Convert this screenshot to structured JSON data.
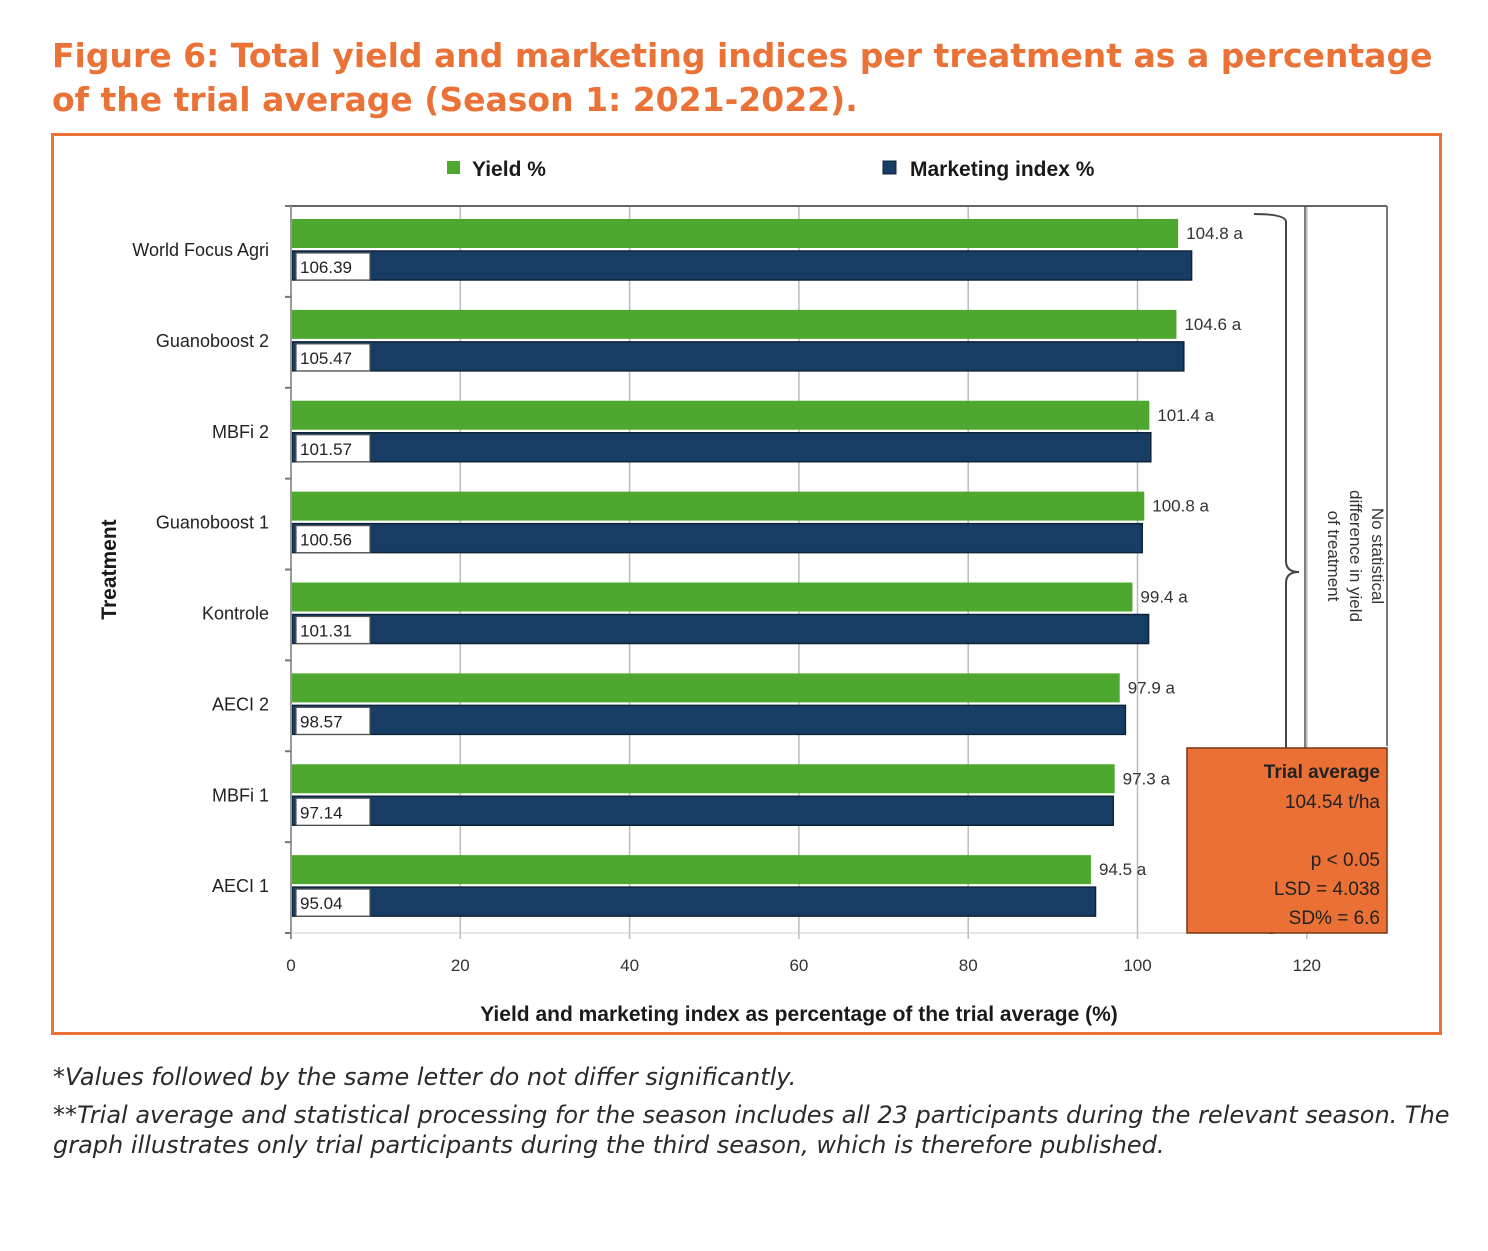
{
  "figure": {
    "title": "Figure 6: Total yield and marketing indices per treatment as a percentage of the trial average (Season 1: 2021-2022).",
    "title_color": "#ea7237",
    "frame_color": "#ea7237"
  },
  "chart_data": {
    "type": "bar",
    "orientation": "horizontal",
    "title": "",
    "xlabel": "Yield and marketing index as percentage of the trial average (%)",
    "ylabel": "Treatment",
    "xlim": [
      0,
      120
    ],
    "xticks": [
      0,
      20,
      40,
      60,
      80,
      100,
      120
    ],
    "grid": true,
    "legend_position": "top",
    "categories": [
      "World Focus Agri",
      "Guanoboost 2",
      "MBFi 2",
      "Guanoboost 1",
      "Kontrole",
      "AECI 2",
      "MBFi 1",
      "AECI 1"
    ],
    "series": [
      {
        "name": "Yield %",
        "color": "#4ea72e",
        "values": [
          104.8,
          104.6,
          101.4,
          100.8,
          99.4,
          97.9,
          97.3,
          94.5
        ],
        "labels": [
          "104.8 a",
          "104.6 a",
          "101.4 a",
          "100.8 a",
          "99.4 a",
          "97.9 a",
          "97.3 a",
          "94.5 a"
        ]
      },
      {
        "name": "Marketing index %",
        "color": "#173d64",
        "values": [
          106.39,
          105.47,
          101.57,
          100.56,
          101.31,
          98.57,
          97.14,
          95.04
        ],
        "labels": [
          "106.39",
          "105.47",
          "101.57",
          "100.56",
          "101.31",
          "98.57",
          "97.14",
          "95.04"
        ]
      }
    ],
    "annotations": {
      "bracket_note": [
        "No statistical",
        "difference in yield",
        "of treatment"
      ],
      "stats_box": {
        "color": "#ea7035",
        "heading": "Trial average",
        "lines": [
          "104.54 t/ha",
          "",
          "p < 0.05",
          "LSD = 4.038",
          "SD% = 6.6"
        ]
      }
    }
  },
  "footnotes": [
    "*Values followed by the same letter do not differ significantly.",
    "**Trial average and statistical processing for the season includes all 23 participants during the relevant season. The graph illustrates only trial participants during the third season, which is therefore published."
  ]
}
